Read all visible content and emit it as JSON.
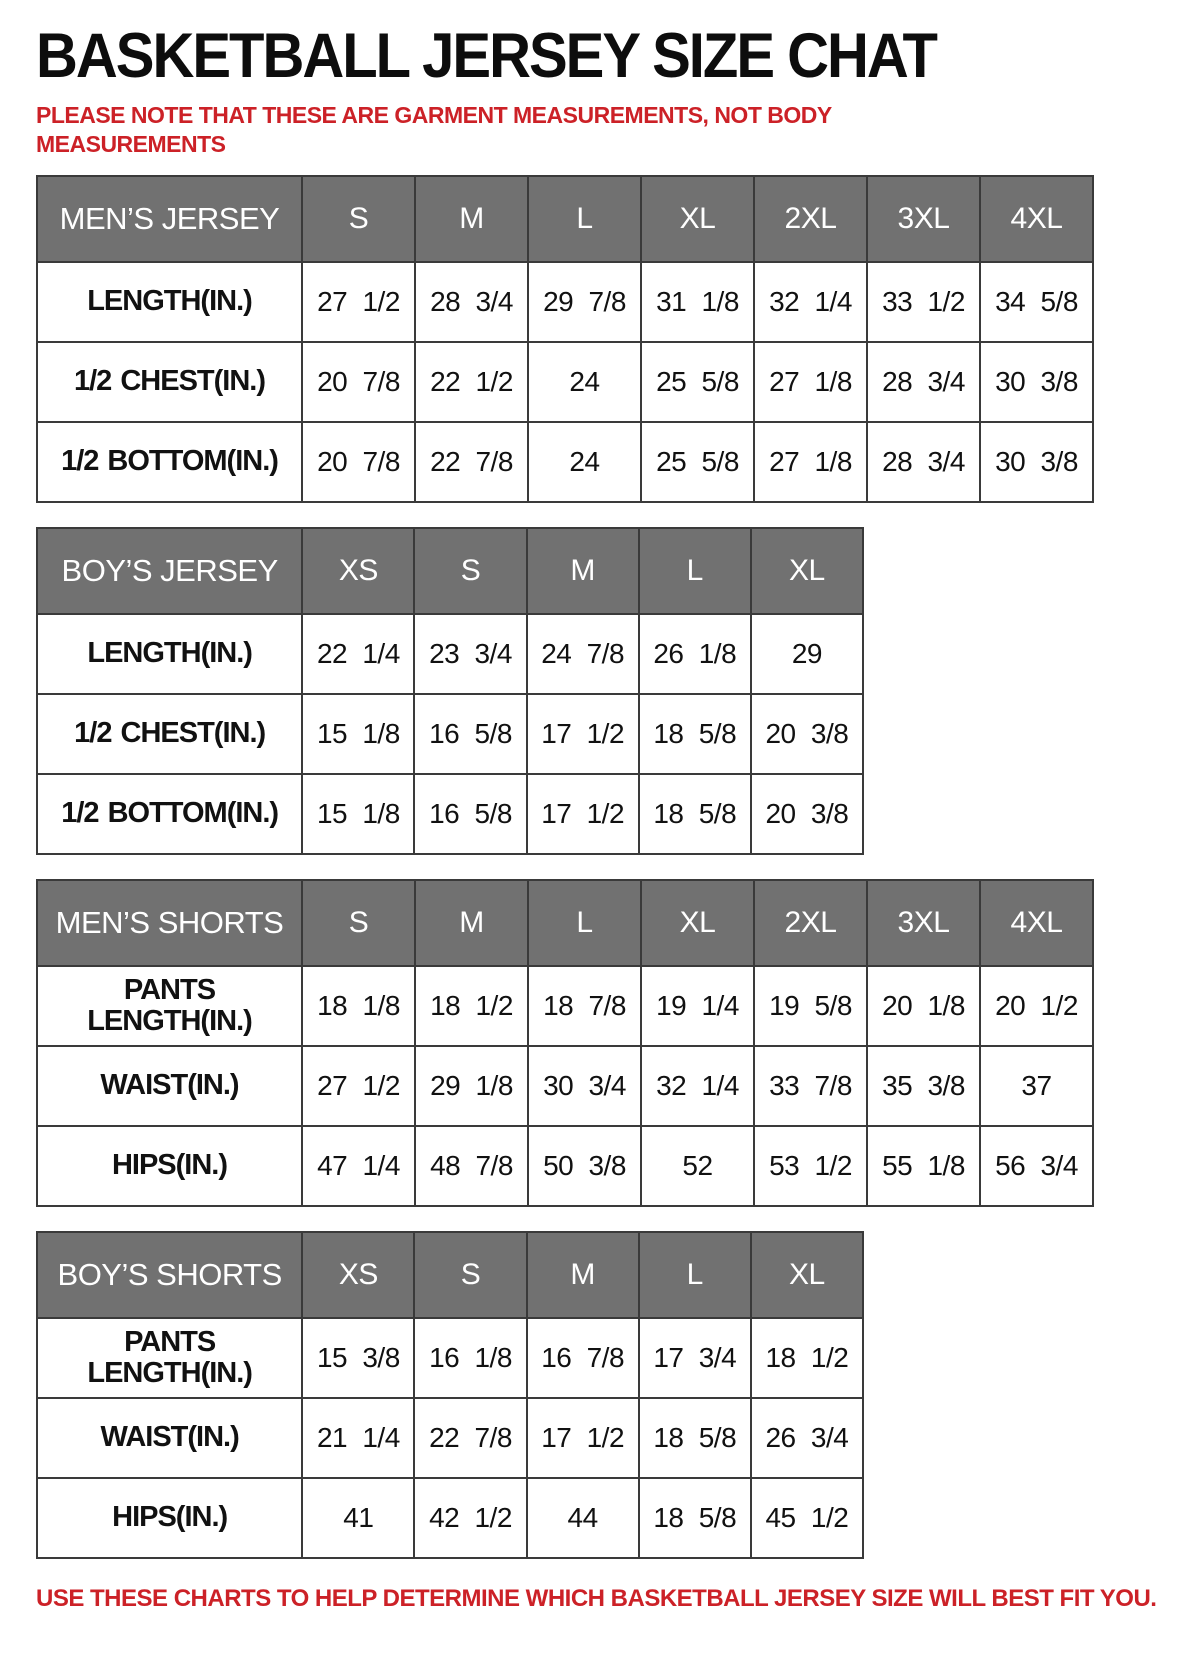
{
  "page": {
    "title": "BASKETBALL JERSEY SIZE CHAT",
    "note_top": "PLEASE NOTE THAT THESE ARE GARMENT MEASUREMENTS, NOT BODY MEASUREMENTS",
    "note_bottom": "USE THESE CHARTS TO HELP DETERMINE WHICH BASKETBALL JERSEY SIZE WILL BEST FIT YOU.",
    "accent_red": "#cc2127",
    "header_gray": "#717171"
  },
  "tables": [
    {
      "name": "MEN’S JERSEY",
      "sizes": [
        "S",
        "M",
        "L",
        "XL",
        "2XL",
        "3XL",
        "4XL"
      ],
      "rows": [
        {
          "label": "LENGTH(IN.)",
          "values": [
            "27 1/2",
            "28 3/4",
            "29 7/8",
            "31 1/8",
            "32 1/4",
            "33 1/2",
            "34 5/8"
          ]
        },
        {
          "label": "1/2 CHEST(IN.)",
          "values": [
            "20 7/8",
            "22 1/2",
            "24",
            "25 5/8",
            "27 1/8",
            "28 3/4",
            "30 3/8"
          ]
        },
        {
          "label": "1/2 BOTTOM(IN.)",
          "values": [
            "20 7/8",
            "22 7/8",
            "24",
            "25 5/8",
            "27 1/8",
            "28 3/4",
            "30 3/8"
          ]
        }
      ]
    },
    {
      "name": "BOY’S JERSEY",
      "sizes": [
        "XS",
        "S",
        "M",
        "L",
        "XL"
      ],
      "rows": [
        {
          "label": "LENGTH(IN.)",
          "values": [
            "22 1/4",
            "23 3/4",
            "24 7/8",
            "26 1/8",
            "29"
          ]
        },
        {
          "label": "1/2 CHEST(IN.)",
          "values": [
            "15 1/8",
            "16 5/8",
            "17 1/2",
            "18 5/8",
            "20 3/8"
          ]
        },
        {
          "label": "1/2 BOTTOM(IN.)",
          "values": [
            "15 1/8",
            "16 5/8",
            "17 1/2",
            "18 5/8",
            "20 3/8"
          ]
        }
      ]
    },
    {
      "name": "MEN’S SHORTS",
      "sizes": [
        "S",
        "M",
        "L",
        "XL",
        "2XL",
        "3XL",
        "4XL"
      ],
      "rows": [
        {
          "label": "PANTS LENGTH(IN.)",
          "values": [
            "18 1/8",
            "18 1/2",
            "18 7/8",
            "19 1/4",
            "19 5/8",
            "20 1/8",
            "20 1/2"
          ]
        },
        {
          "label": "WAIST(IN.)",
          "values": [
            "27 1/2",
            "29 1/8",
            "30 3/4",
            "32 1/4",
            "33 7/8",
            "35 3/8",
            "37"
          ]
        },
        {
          "label": "HIPS(IN.)",
          "values": [
            "47 1/4",
            "48 7/8",
            "50 3/8",
            "52",
            "53 1/2",
            "55 1/8",
            "56 3/4"
          ]
        }
      ]
    },
    {
      "name": "BOY’S SHORTS",
      "sizes": [
        "XS",
        "S",
        "M",
        "L",
        "XL"
      ],
      "rows": [
        {
          "label": "PANTS LENGTH(IN.)",
          "values": [
            "15 3/8",
            "16 1/8",
            "16 7/8",
            "17 3/4",
            "18 1/2"
          ]
        },
        {
          "label": "WAIST(IN.)",
          "values": [
            "21 1/4",
            "22 7/8",
            "17 1/2",
            "18 5/8",
            "26 3/4"
          ]
        },
        {
          "label": "HIPS(IN.)",
          "values": [
            "41",
            "42 1/2",
            "44",
            "18 5/8",
            "45 1/2"
          ]
        }
      ]
    }
  ]
}
